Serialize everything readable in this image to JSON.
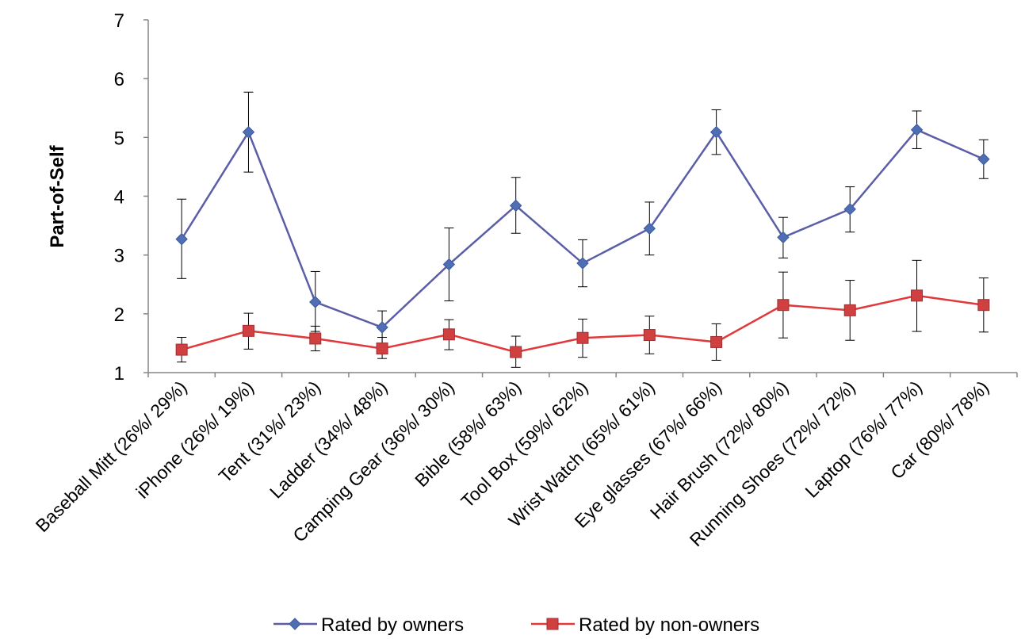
{
  "chart_data": {
    "type": "line",
    "ylabel": "Part-of-Self",
    "xlabel": "",
    "ylim": [
      1,
      7
    ],
    "yticks": [
      1,
      2,
      3,
      4,
      5,
      6,
      7
    ],
    "grid": false,
    "legend_position": "bottom",
    "categories": [
      "Baseball Mitt (26%/ 29%)",
      "iPhone (26%/ 19%)",
      "Tent (31%/ 23%)",
      "Ladder (34%/ 48%)",
      "Camping Gear (36%/ 30%)",
      "Bible (58%/ 63%)",
      "Tool Box (59%/ 62%)",
      "Wrist Watch (65%/ 61%)",
      "Eye glasses (67%/ 66%)",
      "Hair Brush (72%/ 80%)",
      "Running Shoes (72%/ 72%)",
      "Laptop (76%/ 77%)",
      "Car (80%/ 78%)"
    ],
    "series": [
      {
        "name": "Rated by owners",
        "color": "#4F6EB4",
        "line_color": "#5B5EA6",
        "marker": "diamond",
        "values": [
          3.27,
          5.09,
          2.2,
          1.77,
          2.84,
          3.84,
          2.86,
          3.45,
          5.09,
          3.3,
          3.78,
          5.13,
          4.63
        ],
        "error_low": [
          2.6,
          4.41,
          1.7,
          1.48,
          2.22,
          3.37,
          2.46,
          3.0,
          4.71,
          2.95,
          3.39,
          4.81,
          4.3
        ],
        "error_high": [
          3.95,
          5.77,
          2.72,
          2.05,
          3.46,
          4.32,
          3.26,
          3.9,
          5.47,
          3.64,
          4.16,
          5.45,
          4.96
        ]
      },
      {
        "name": "Rated by non-owners",
        "color": "#D04040",
        "line_color": "#E0383B",
        "marker": "square",
        "values": [
          1.39,
          1.71,
          1.58,
          1.41,
          1.65,
          1.35,
          1.59,
          1.64,
          1.52,
          2.15,
          2.06,
          2.31,
          2.15
        ],
        "error_low": [
          1.18,
          1.4,
          1.37,
          1.24,
          1.39,
          1.09,
          1.26,
          1.32,
          1.21,
          1.59,
          1.55,
          1.7,
          1.69
        ],
        "error_high": [
          1.6,
          2.01,
          1.79,
          1.6,
          1.9,
          1.62,
          1.91,
          1.96,
          1.83,
          2.71,
          2.57,
          2.91,
          2.61
        ]
      }
    ]
  }
}
